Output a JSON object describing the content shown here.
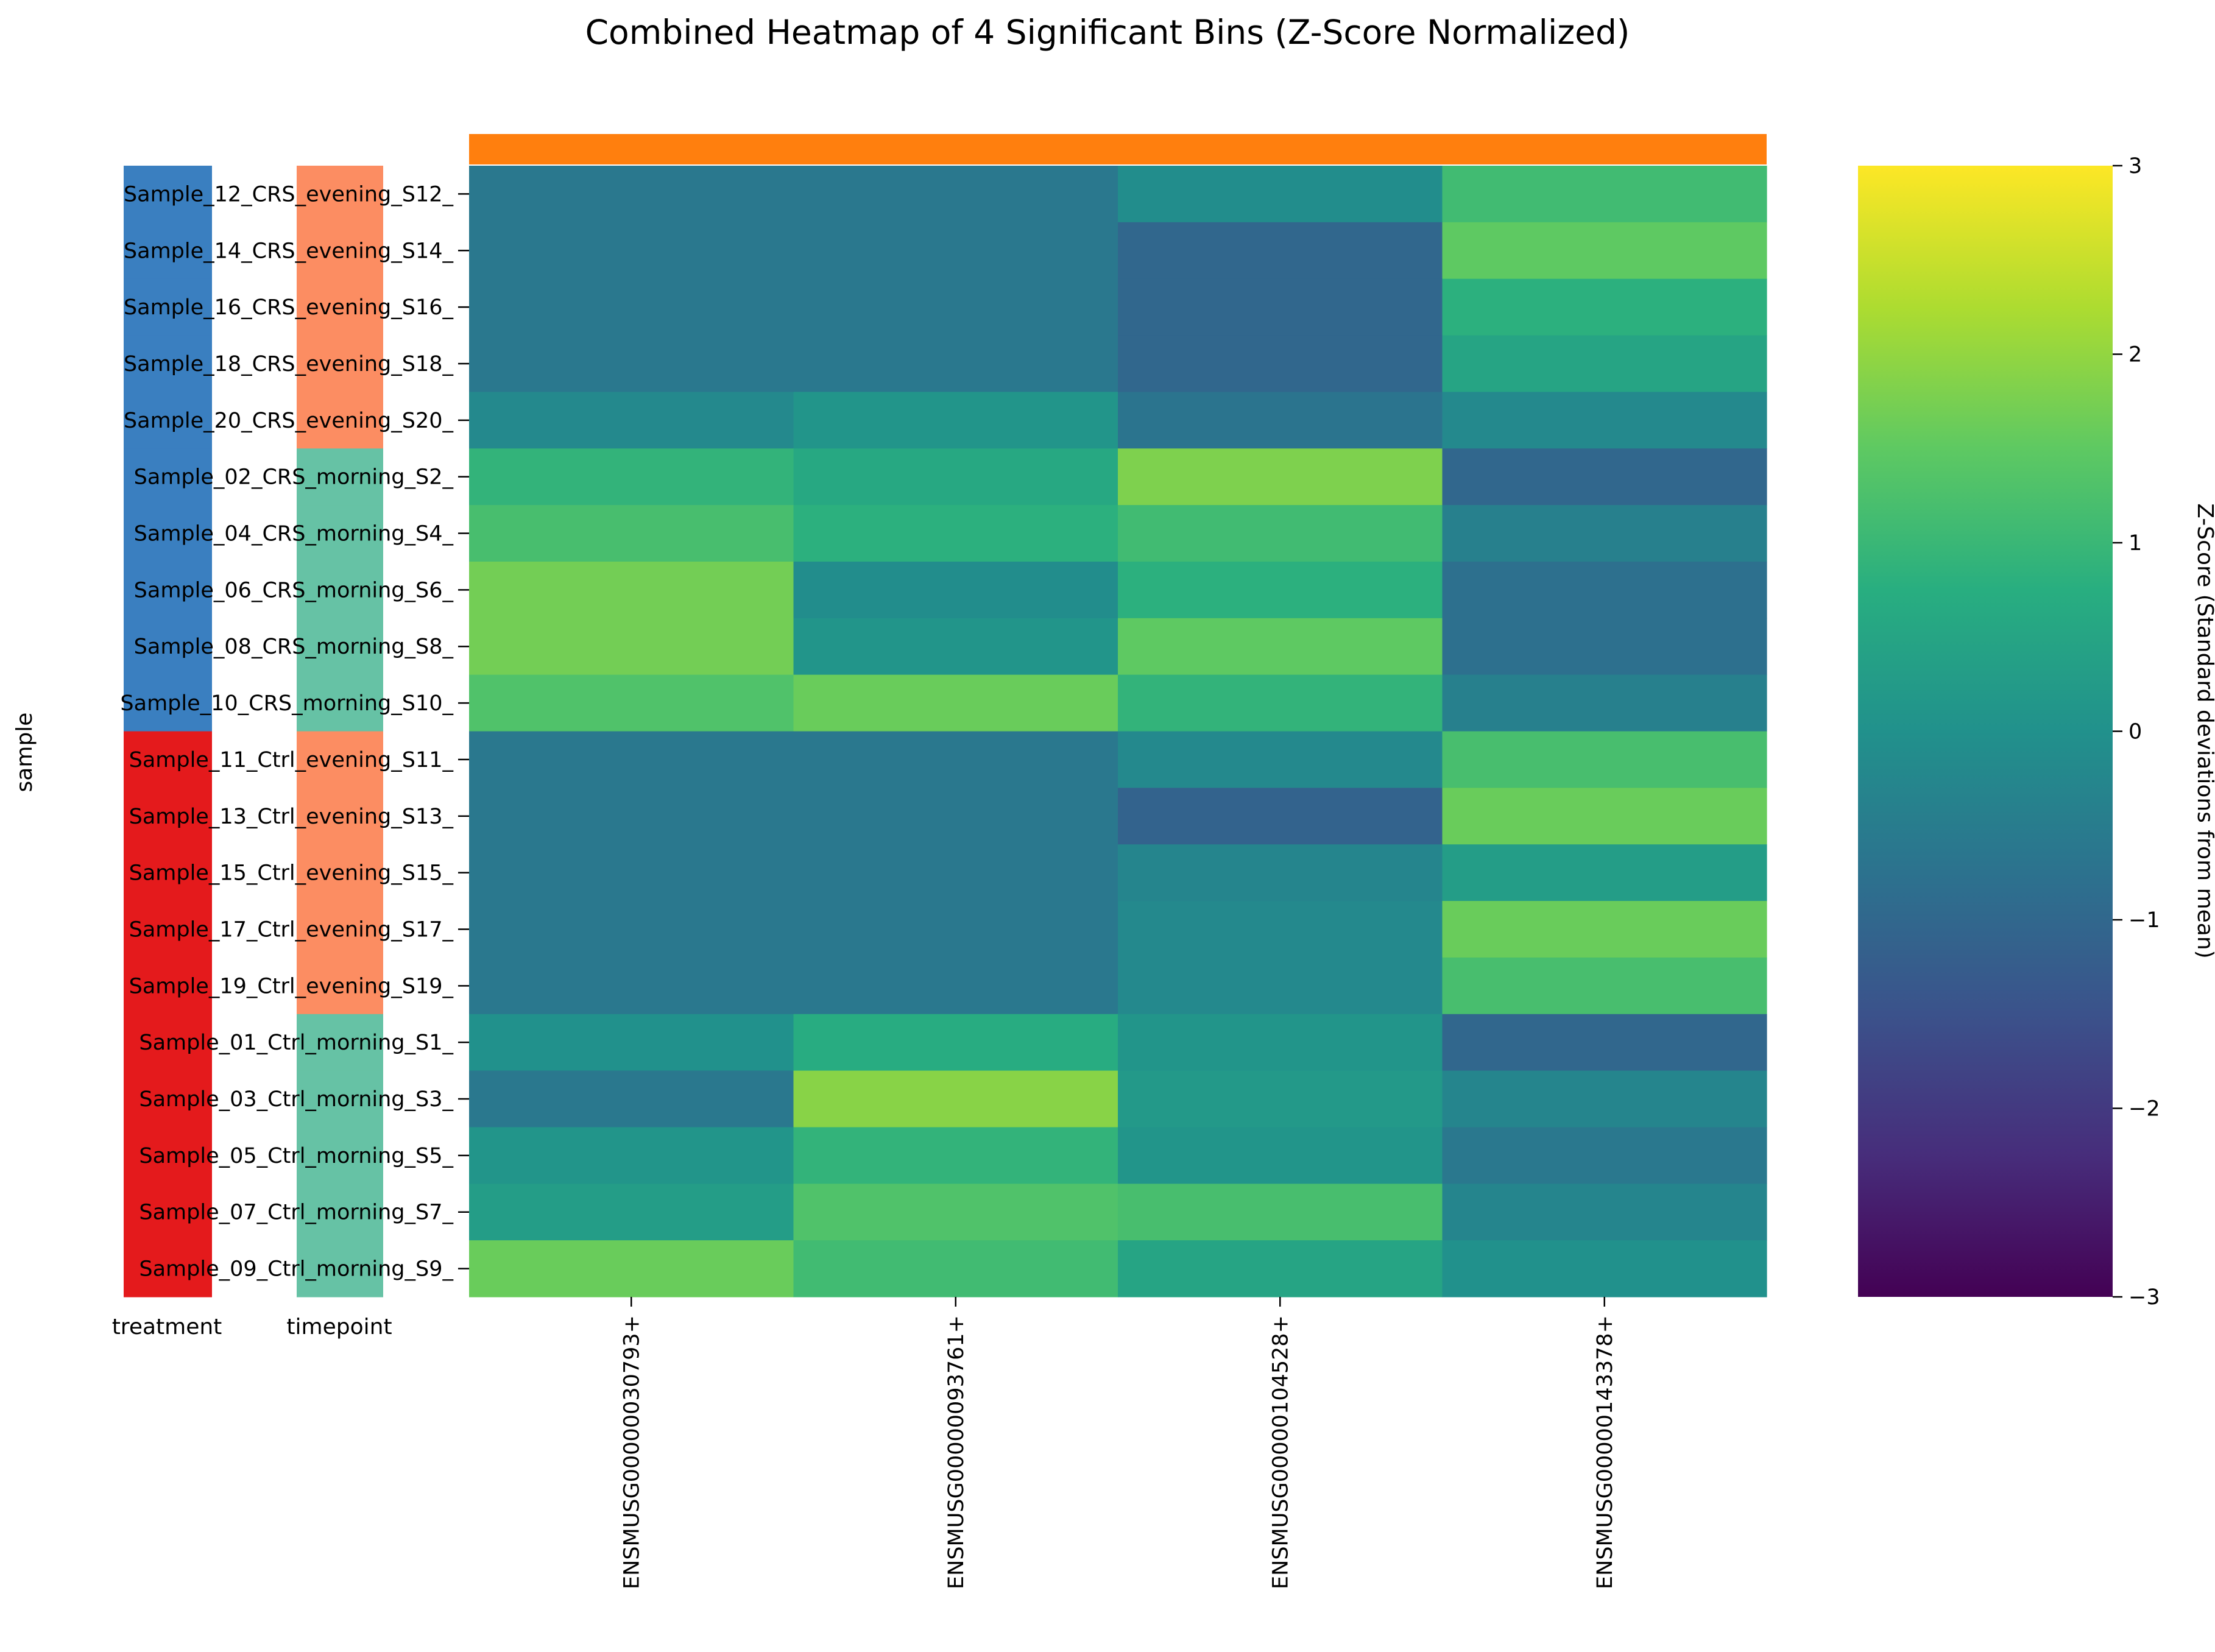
{
  "chart_data": {
    "type": "heatmap",
    "title": "Combined Heatmap of 4 Significant Bins (Z-Score Normalized)",
    "ylabel": "sample",
    "column_annotation_color": "#ff7f0e",
    "row_annotation_labels": [
      "treatment",
      "timepoint"
    ],
    "columns": [
      "ENSMUSG00000030793+",
      "ENSMUSG00000093761+",
      "ENSMUSG00000104528+",
      "ENSMUSG00000143378+"
    ],
    "rows": [
      {
        "label": "Sample_12_CRS_evening_S12_",
        "treatment": "CRS",
        "timepoint": "evening",
        "values": [
          -0.6,
          -0.6,
          -0.1,
          1.1
        ]
      },
      {
        "label": "Sample_14_CRS_evening_S14_",
        "treatment": "CRS",
        "timepoint": "evening",
        "values": [
          -0.6,
          -0.6,
          -1.0,
          1.5
        ]
      },
      {
        "label": "Sample_16_CRS_evening_S16_",
        "treatment": "CRS",
        "timepoint": "evening",
        "values": [
          -0.6,
          -0.6,
          -1.0,
          0.8
        ]
      },
      {
        "label": "Sample_18_CRS_evening_S18_",
        "treatment": "CRS",
        "timepoint": "evening",
        "values": [
          -0.6,
          -0.6,
          -1.0,
          0.5
        ]
      },
      {
        "label": "Sample_20_CRS_evening_S20_",
        "treatment": "CRS",
        "timepoint": "evening",
        "values": [
          -0.2,
          0.1,
          -0.7,
          -0.2
        ]
      },
      {
        "label": "Sample_02_CRS_morning_S2_",
        "treatment": "CRS",
        "timepoint": "morning",
        "values": [
          0.9,
          0.6,
          1.8,
          -1.0
        ]
      },
      {
        "label": "Sample_04_CRS_morning_S4_",
        "treatment": "CRS",
        "timepoint": "morning",
        "values": [
          1.2,
          0.8,
          1.1,
          -0.4
        ]
      },
      {
        "label": "Sample_06_CRS_morning_S6_",
        "treatment": "CRS",
        "timepoint": "morning",
        "values": [
          1.7,
          -0.1,
          0.8,
          -0.8
        ]
      },
      {
        "label": "Sample_08_CRS_morning_S8_",
        "treatment": "CRS",
        "timepoint": "morning",
        "values": [
          1.7,
          0.1,
          1.5,
          -0.8
        ]
      },
      {
        "label": "Sample_10_CRS_morning_S10_",
        "treatment": "CRS",
        "timepoint": "morning",
        "values": [
          1.3,
          1.6,
          0.9,
          -0.4
        ]
      },
      {
        "label": "Sample_11_Ctrl_evening_S11_",
        "treatment": "Ctrl",
        "timepoint": "evening",
        "values": [
          -0.6,
          -0.6,
          -0.2,
          1.2
        ]
      },
      {
        "label": "Sample_13_Ctrl_evening_S13_",
        "treatment": "Ctrl",
        "timepoint": "evening",
        "values": [
          -0.6,
          -0.6,
          -1.1,
          1.6
        ]
      },
      {
        "label": "Sample_15_Ctrl_evening_S15_",
        "treatment": "Ctrl",
        "timepoint": "evening",
        "values": [
          -0.6,
          -0.6,
          -0.3,
          0.3
        ]
      },
      {
        "label": "Sample_17_Ctrl_evening_S17_",
        "treatment": "Ctrl",
        "timepoint": "evening",
        "values": [
          -0.6,
          -0.6,
          -0.2,
          1.6
        ]
      },
      {
        "label": "Sample_19_Ctrl_evening_S19_",
        "treatment": "Ctrl",
        "timepoint": "evening",
        "values": [
          -0.6,
          -0.6,
          -0.2,
          1.2
        ]
      },
      {
        "label": "Sample_01_Ctrl_morning_S1_",
        "treatment": "Ctrl",
        "timepoint": "morning",
        "values": [
          0.0,
          0.7,
          0.1,
          -1.0
        ]
      },
      {
        "label": "Sample_03_Ctrl_morning_S3_",
        "treatment": "Ctrl",
        "timepoint": "morning",
        "values": [
          -0.6,
          1.9,
          0.2,
          -0.3
        ]
      },
      {
        "label": "Sample_05_Ctrl_morning_S5_",
        "treatment": "Ctrl",
        "timepoint": "morning",
        "values": [
          0.1,
          0.9,
          0.1,
          -0.6
        ]
      },
      {
        "label": "Sample_07_Ctrl_morning_S7_",
        "treatment": "Ctrl",
        "timepoint": "morning",
        "values": [
          0.3,
          1.3,
          1.2,
          -0.3
        ]
      },
      {
        "label": "Sample_09_Ctrl_morning_S9_",
        "treatment": "Ctrl",
        "timepoint": "morning",
        "values": [
          1.6,
          1.1,
          0.5,
          0.0
        ]
      }
    ],
    "treatment_colors": {
      "CRS": "#3a7fc0",
      "Ctrl": "#e41a1c"
    },
    "timepoint_colors": {
      "evening": "#fc8d62",
      "morning": "#66c2a5"
    },
    "colorbar": {
      "label": "Z-Score (Standard deviations from mean)",
      "colormap": "viridis",
      "vmin": -3,
      "vmax": 3,
      "ticks": [
        -3,
        -2,
        -1,
        0,
        1,
        2,
        3
      ]
    }
  }
}
